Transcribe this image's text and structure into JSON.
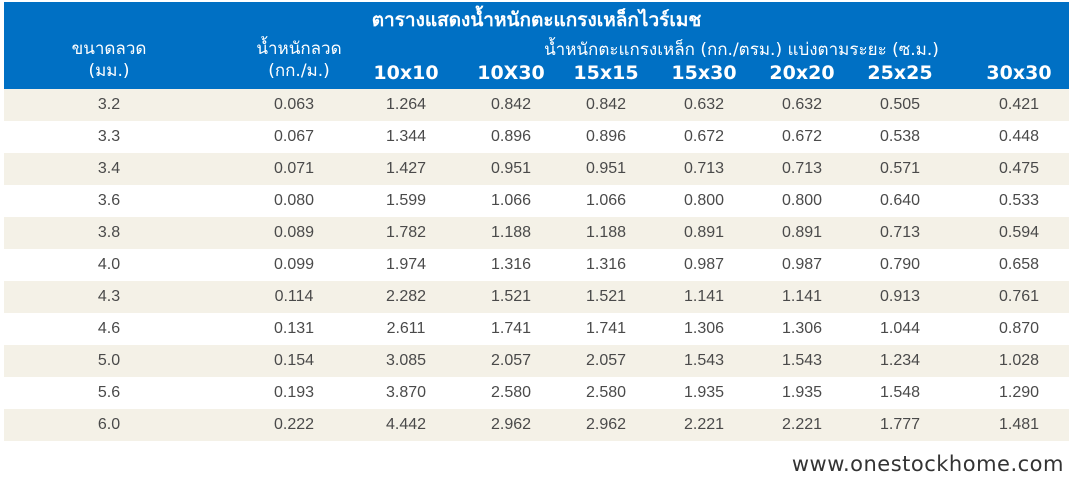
{
  "table": {
    "title": "ตารางแสดงน้ำหนักตะแกรงเหล็กไวร์เมช",
    "col_wire_size": {
      "line1": "ขนาดลวด",
      "line2": "(มม.)"
    },
    "col_wire_weight": {
      "line1": "น้ำหนักลวด",
      "line2": "(กก./ม.)"
    },
    "mesh_weight_header": "น้ำหนักตะแกรงเหล็ก (กก./ตรม.) แบ่งตามระยะ (ซ.ม.)",
    "spacings": [
      "10x10",
      "10X30",
      "15x15",
      "15x30",
      "20x20",
      "25x25",
      "30x30"
    ],
    "rows": [
      [
        "3.2",
        "0.063",
        "1.264",
        "0.842",
        "0.842",
        "0.632",
        "0.632",
        "0.505",
        "0.421"
      ],
      [
        "3.3",
        "0.067",
        "1.344",
        "0.896",
        "0.896",
        "0.672",
        "0.672",
        "0.538",
        "0.448"
      ],
      [
        "3.4",
        "0.071",
        "1.427",
        "0.951",
        "0.951",
        "0.713",
        "0.713",
        "0.571",
        "0.475"
      ],
      [
        "3.6",
        "0.080",
        "1.599",
        "1.066",
        "1.066",
        "0.800",
        "0.800",
        "0.640",
        "0.533"
      ],
      [
        "3.8",
        "0.089",
        "1.782",
        "1.188",
        "1.188",
        "0.891",
        "0.891",
        "0.713",
        "0.594"
      ],
      [
        "4.0",
        "0.099",
        "1.974",
        "1.316",
        "1.316",
        "0.987",
        "0.987",
        "0.790",
        "0.658"
      ],
      [
        "4.3",
        "0.114",
        "2.282",
        "1.521",
        "1.521",
        "1.141",
        "1.141",
        "0.913",
        "0.761"
      ],
      [
        "4.6",
        "0.131",
        "2.611",
        "1.741",
        "1.741",
        "1.306",
        "1.306",
        "1.044",
        "0.870"
      ],
      [
        "5.0",
        "0.154",
        "3.085",
        "2.057",
        "2.057",
        "1.543",
        "1.543",
        "1.234",
        "1.028"
      ],
      [
        "5.6",
        "0.193",
        "3.870",
        "2.580",
        "2.580",
        "1.935",
        "1.935",
        "1.548",
        "1.290"
      ],
      [
        "6.0",
        "0.222",
        "4.442",
        "2.962",
        "2.962",
        "2.221",
        "2.221",
        "1.777",
        "1.481"
      ]
    ]
  },
  "footer": {
    "website": "www.onestockhome.com"
  },
  "colors": {
    "header_bg": "#0070c4",
    "row_shaded": "#f4f1e7",
    "text": "#4a4a4a"
  }
}
